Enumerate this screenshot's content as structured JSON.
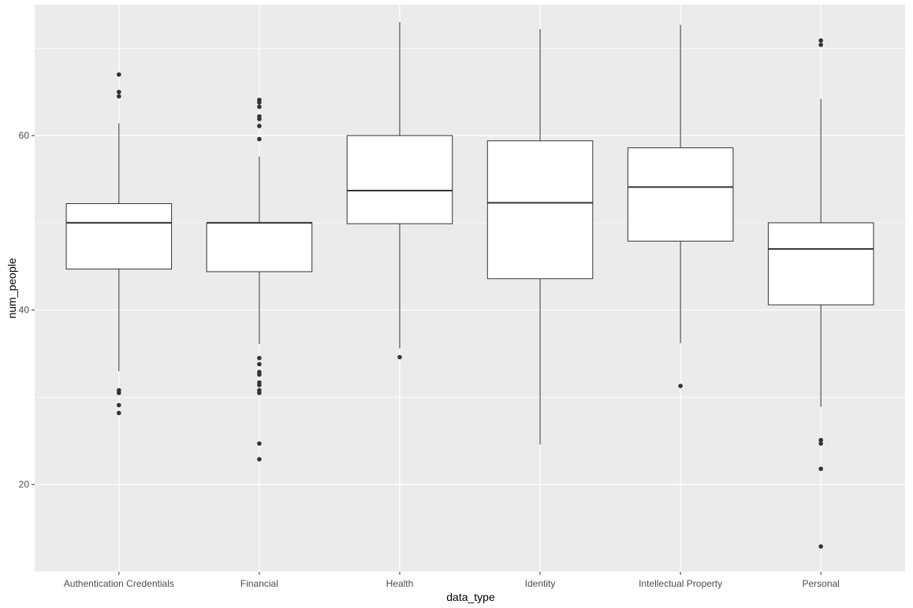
{
  "chart_data": {
    "type": "boxplot",
    "xlabel": "data_type",
    "ylabel": "num_people",
    "ylim": [
      10,
      75
    ],
    "yticks": [
      20,
      40,
      60
    ],
    "ytick_labels": [
      "20",
      "40",
      "60"
    ],
    "grid": true,
    "colors": {
      "panel_background": "#ebebeb",
      "grid_major": "#ffffff",
      "box_fill": "#ffffff",
      "box_line": "#333333",
      "outlier": "#333333",
      "tick_label": "#4d4d4d",
      "axis_title": "#000000"
    },
    "categories": [
      "Authentication Credentials",
      "Financial",
      "Health",
      "Identity",
      "Intellectual Property",
      "Personal"
    ],
    "boxes": [
      {
        "category": "Authentication Credentials",
        "whisker_low": 33.0,
        "q1": 44.7,
        "median": 50.0,
        "q3": 52.2,
        "whisker_high": 61.4,
        "outliers": [
          67.0,
          65.0,
          64.5,
          30.8,
          30.5,
          29.1,
          28.2
        ]
      },
      {
        "category": "Financial",
        "whisker_low": 36.1,
        "q1": 44.4,
        "median": 50.0,
        "q3": 50.0,
        "whisker_high": 57.6,
        "outliers": [
          64.1,
          63.8,
          63.3,
          62.2,
          61.9,
          61.1,
          59.6,
          34.5,
          33.8,
          32.9,
          32.6,
          31.7,
          31.4,
          30.8,
          30.5,
          24.7,
          22.9
        ]
      },
      {
        "category": "Health",
        "whisker_low": 35.6,
        "q1": 49.9,
        "median": 53.7,
        "q3": 60.0,
        "whisker_high": 73.0,
        "outliers": [
          34.6
        ]
      },
      {
        "category": "Identity",
        "whisker_low": 24.6,
        "q1": 43.6,
        "median": 52.3,
        "q3": 59.4,
        "whisker_high": 72.2,
        "outliers": []
      },
      {
        "category": "Intellectual Property",
        "whisker_low": 36.2,
        "q1": 47.9,
        "median": 54.1,
        "q3": 58.6,
        "whisker_high": 72.7,
        "outliers": [
          31.3
        ]
      },
      {
        "category": "Personal",
        "whisker_low": 28.9,
        "q1": 40.6,
        "median": 47.0,
        "q3": 50.0,
        "whisker_high": 64.2,
        "outliers": [
          70.9,
          70.4,
          25.1,
          24.7,
          21.8,
          12.9
        ]
      }
    ]
  }
}
